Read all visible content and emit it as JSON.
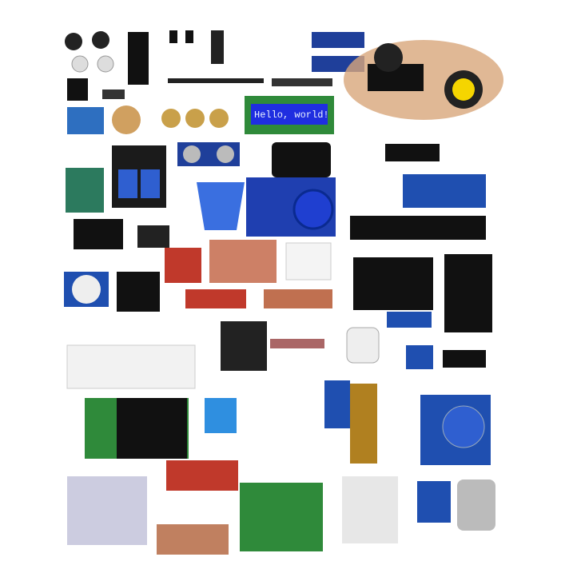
{
  "lcd": {
    "text": "Hello, world!"
  }
}
